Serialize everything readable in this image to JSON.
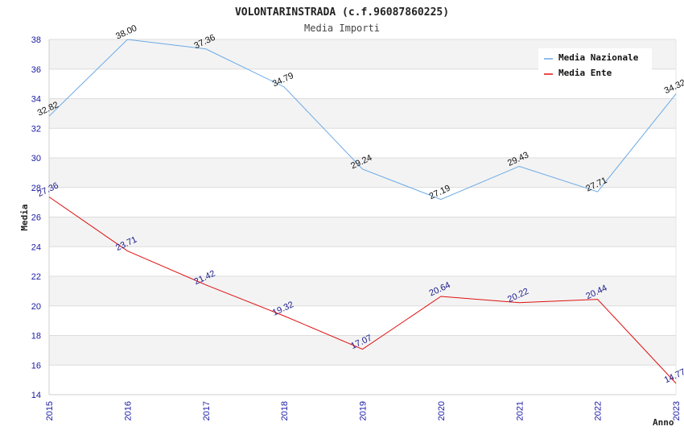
{
  "chart_data": {
    "type": "line",
    "title": "VOLONTARINSTRADA (c.f.96087860225)",
    "subtitle": "Media Importi",
    "xlabel": "Anno",
    "ylabel": "Media",
    "ylim": [
      14,
      38
    ],
    "yticks": [
      "14",
      "16",
      "18",
      "20",
      "22",
      "24",
      "26",
      "28",
      "30",
      "32",
      "34",
      "36",
      "38"
    ],
    "categories": [
      "2015",
      "2016",
      "2017",
      "2018",
      "2019",
      "2020",
      "2021",
      "2022",
      "2023"
    ],
    "grid": true,
    "legend_position": "top-right",
    "series": [
      {
        "name": "Media Nazionale",
        "color": "#6aa9e6",
        "label_color": "#111111",
        "values": [
          32.82,
          38.0,
          37.36,
          34.79,
          29.24,
          27.19,
          29.43,
          27.71,
          34.32
        ],
        "labels": [
          "32.82",
          "38.00",
          "37.36",
          "34.79",
          "29.24",
          "27.19",
          "29.43",
          "27.71",
          "34.32"
        ]
      },
      {
        "name": "Media Ente",
        "color": "#e01010",
        "label_color": "#1a1a8c",
        "values": [
          27.36,
          23.71,
          21.42,
          19.32,
          17.07,
          20.64,
          20.22,
          20.44,
          14.77
        ],
        "labels": [
          "27.36",
          "23.71",
          "21.42",
          "19.32",
          "17.07",
          "20.64",
          "20.22",
          "20.44",
          "14.77"
        ]
      }
    ]
  }
}
